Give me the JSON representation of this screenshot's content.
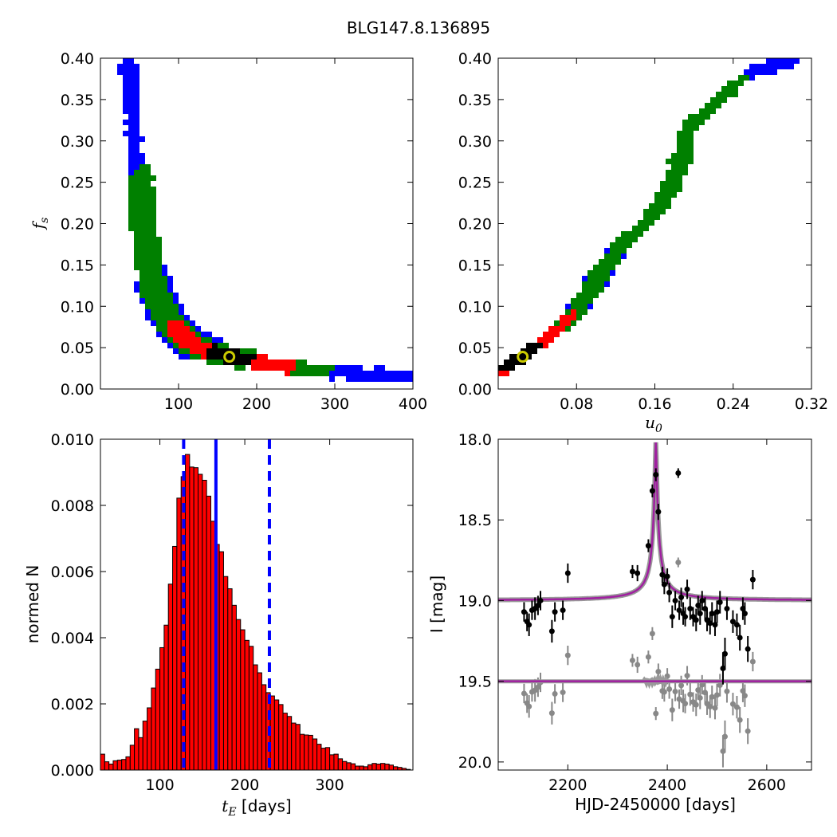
{
  "figure_title": "BLG147.8.136895",
  "colors": {
    "sigma1": "#000000",
    "sigma2": "#ff0000",
    "sigma3": "#008000",
    "sigma4": "#0000ff",
    "best_fit": "#cccc00",
    "model": "#a020a0",
    "data": "#000000",
    "residuals": "#888888"
  },
  "chart_data": [
    {
      "id": "fs_vs_tE",
      "type": "heatmap",
      "xlim": [
        0,
        400
      ],
      "ylim": [
        0,
        0.4
      ],
      "xticks": [
        "100",
        "200",
        "300",
        "400"
      ],
      "yticks": [
        "0.00",
        "0.05",
        "0.10",
        "0.15",
        "0.20",
        "0.25",
        "0.30",
        "0.35",
        "0.40"
      ],
      "ylabel_main": "f",
      "ylabel_sub": "s",
      "best_fit": {
        "x": 165,
        "y": 0.039
      },
      "tracks": [
        {
          "points": [
            [
              35,
              0.395
            ],
            [
              38,
              0.38
            ],
            [
              40,
              0.35
            ],
            [
              45,
              0.27
            ],
            [
              52,
              0.25
            ],
            [
              55,
              0.2
            ],
            [
              60,
              0.17
            ],
            [
              65,
              0.13
            ],
            [
              72,
              0.115
            ],
            [
              80,
              0.095
            ],
            [
              90,
              0.08
            ],
            [
              100,
              0.068
            ],
            [
              110,
              0.06
            ],
            [
              120,
              0.053
            ],
            [
              135,
              0.047
            ],
            [
              150,
              0.043
            ],
            [
              165,
              0.039
            ],
            [
              185,
              0.035
            ],
            [
              210,
              0.031
            ],
            [
              240,
              0.027
            ],
            [
              270,
              0.023
            ],
            [
              300,
              0.02
            ],
            [
              340,
              0.018
            ],
            [
              400,
              0.017
            ]
          ]
        }
      ]
    },
    {
      "id": "fs_vs_u0",
      "type": "heatmap",
      "xlim": [
        0,
        0.32
      ],
      "ylim": [
        0,
        0.4
      ],
      "xticks": [
        "0.08",
        "0.16",
        "0.24",
        "0.32"
      ],
      "yticks": [
        "0.00",
        "0.05",
        "0.10",
        "0.15",
        "0.20",
        "0.25",
        "0.30",
        "0.35",
        "0.40"
      ],
      "xlabel_main": "u",
      "xlabel_sub": "0",
      "best_fit": {
        "x": 0.025,
        "y": 0.039
      },
      "tracks": [
        {
          "points": [
            [
              0.003,
              0.02
            ],
            [
              0.01,
              0.028
            ],
            [
              0.02,
              0.035
            ],
            [
              0.025,
              0.039
            ],
            [
              0.035,
              0.048
            ],
            [
              0.05,
              0.06
            ],
            [
              0.065,
              0.075
            ],
            [
              0.08,
              0.095
            ],
            [
              0.095,
              0.12
            ],
            [
              0.11,
              0.15
            ],
            [
              0.125,
              0.175
            ],
            [
              0.14,
              0.19
            ],
            [
              0.155,
              0.205
            ],
            [
              0.17,
              0.23
            ],
            [
              0.185,
              0.27
            ],
            [
              0.195,
              0.32
            ],
            [
              0.22,
              0.34
            ],
            [
              0.245,
              0.37
            ],
            [
              0.26,
              0.385
            ],
            [
              0.3,
              0.395
            ]
          ]
        }
      ]
    },
    {
      "id": "tE_histogram",
      "type": "bar",
      "xlim": [
        30,
        398
      ],
      "ylim": [
        0,
        0.01
      ],
      "xticks": [
        "100",
        "200",
        "300"
      ],
      "yticks": [
        "0.000",
        "0.002",
        "0.004",
        "0.006",
        "0.008",
        "0.010"
      ],
      "xlabel_main": "t",
      "xlabel_sub": "E",
      "xlabel_unit": " [days]",
      "ylabel": "normed N",
      "bin_start": 30,
      "bin_width": 5,
      "values": [
        0.00048,
        0.00025,
        0.00018,
        0.00028,
        0.0003,
        0.00032,
        0.0004,
        0.00075,
        0.00125,
        0.00098,
        0.00148,
        0.00188,
        0.00248,
        0.00305,
        0.0037,
        0.00438,
        0.00562,
        0.00676,
        0.00822,
        0.00887,
        0.00954,
        0.00916,
        0.00914,
        0.00894,
        0.00876,
        0.00828,
        0.00752,
        0.00682,
        0.0066,
        0.00585,
        0.00548,
        0.00498,
        0.00455,
        0.00424,
        0.00392,
        0.00374,
        0.00318,
        0.00294,
        0.00258,
        0.00234,
        0.00224,
        0.00212,
        0.00198,
        0.00172,
        0.00162,
        0.00142,
        0.00138,
        0.00108,
        0.00106,
        0.00105,
        0.00094,
        0.00078,
        0.00066,
        0.00068,
        0.00046,
        0.00048,
        0.00034,
        0.00026,
        0.00022,
        0.00019,
        0.00012,
        0.00012,
        0.0001,
        0.00016,
        0.0002,
        0.00018,
        0.0002,
        0.00018,
        0.00015,
        0.0001,
        8e-05,
        5e-05,
        2e-05,
        1e-05
      ],
      "median_line": 166,
      "dashed_lines": [
        128,
        229
      ]
    },
    {
      "id": "lightcurve",
      "type": "scatter",
      "xlim": [
        2060,
        2690
      ],
      "ylim": [
        20.05,
        18.0
      ],
      "xticks": [
        "2200",
        "2400",
        "2600"
      ],
      "yticks": [
        "18.0",
        "18.5",
        "19.0",
        "19.5",
        "20.0"
      ],
      "xlabel": "HJD-2450000 [days]",
      "ylabel": "I [mag]",
      "model": {
        "baseline": 19.0,
        "peak_time": 2377,
        "peak_mag": 18.02,
        "width": 5,
        "tail": 120
      },
      "residual_baseline": 19.5,
      "points": [
        [
          2112,
          19.07,
          0.06
        ],
        [
          2118,
          19.13,
          0.06
        ],
        [
          2122,
          19.15,
          0.07
        ],
        [
          2128,
          19.06,
          0.06
        ],
        [
          2134,
          19.05,
          0.07
        ],
        [
          2140,
          19.03,
          0.06
        ],
        [
          2145,
          19.0,
          0.06
        ],
        [
          2168,
          19.19,
          0.07
        ],
        [
          2174,
          19.07,
          0.06
        ],
        [
          2190,
          19.06,
          0.06
        ],
        [
          2200,
          18.83,
          0.06
        ],
        [
          2330,
          18.82,
          0.04
        ],
        [
          2340,
          18.83,
          0.05
        ],
        [
          2362,
          18.66,
          0.04
        ],
        [
          2370,
          18.32,
          0.04
        ],
        [
          2377,
          18.22,
          0.04
        ],
        [
          2382,
          18.45,
          0.05
        ],
        [
          2390,
          18.84,
          0.05
        ],
        [
          2394,
          18.9,
          0.06
        ],
        [
          2400,
          18.85,
          0.05
        ],
        [
          2404,
          18.95,
          0.06
        ],
        [
          2410,
          19.1,
          0.07
        ],
        [
          2416,
          19.0,
          0.06
        ],
        [
          2422,
          18.21,
          0.03
        ],
        [
          2424,
          19.06,
          0.06
        ],
        [
          2428,
          18.98,
          0.06
        ],
        [
          2432,
          19.08,
          0.07
        ],
        [
          2436,
          19.1,
          0.06
        ],
        [
          2440,
          18.93,
          0.06
        ],
        [
          2446,
          19.05,
          0.07
        ],
        [
          2452,
          19.1,
          0.06
        ],
        [
          2458,
          19.12,
          0.07
        ],
        [
          2462,
          19.03,
          0.06
        ],
        [
          2466,
          19.08,
          0.07
        ],
        [
          2470,
          19.0,
          0.06
        ],
        [
          2476,
          19.05,
          0.07
        ],
        [
          2480,
          19.12,
          0.07
        ],
        [
          2486,
          19.14,
          0.07
        ],
        [
          2490,
          19.08,
          0.07
        ],
        [
          2496,
          19.15,
          0.07
        ],
        [
          2500,
          19.07,
          0.07
        ],
        [
          2506,
          19.01,
          0.07
        ],
        [
          2512,
          19.42,
          0.1
        ],
        [
          2516,
          19.33,
          0.1
        ],
        [
          2520,
          19.05,
          0.07
        ],
        [
          2532,
          19.13,
          0.07
        ],
        [
          2540,
          19.15,
          0.07
        ],
        [
          2546,
          19.23,
          0.08
        ],
        [
          2552,
          19.05,
          0.07
        ],
        [
          2556,
          19.08,
          0.07
        ],
        [
          2562,
          19.3,
          0.08
        ],
        [
          2572,
          18.87,
          0.06
        ]
      ]
    }
  ]
}
